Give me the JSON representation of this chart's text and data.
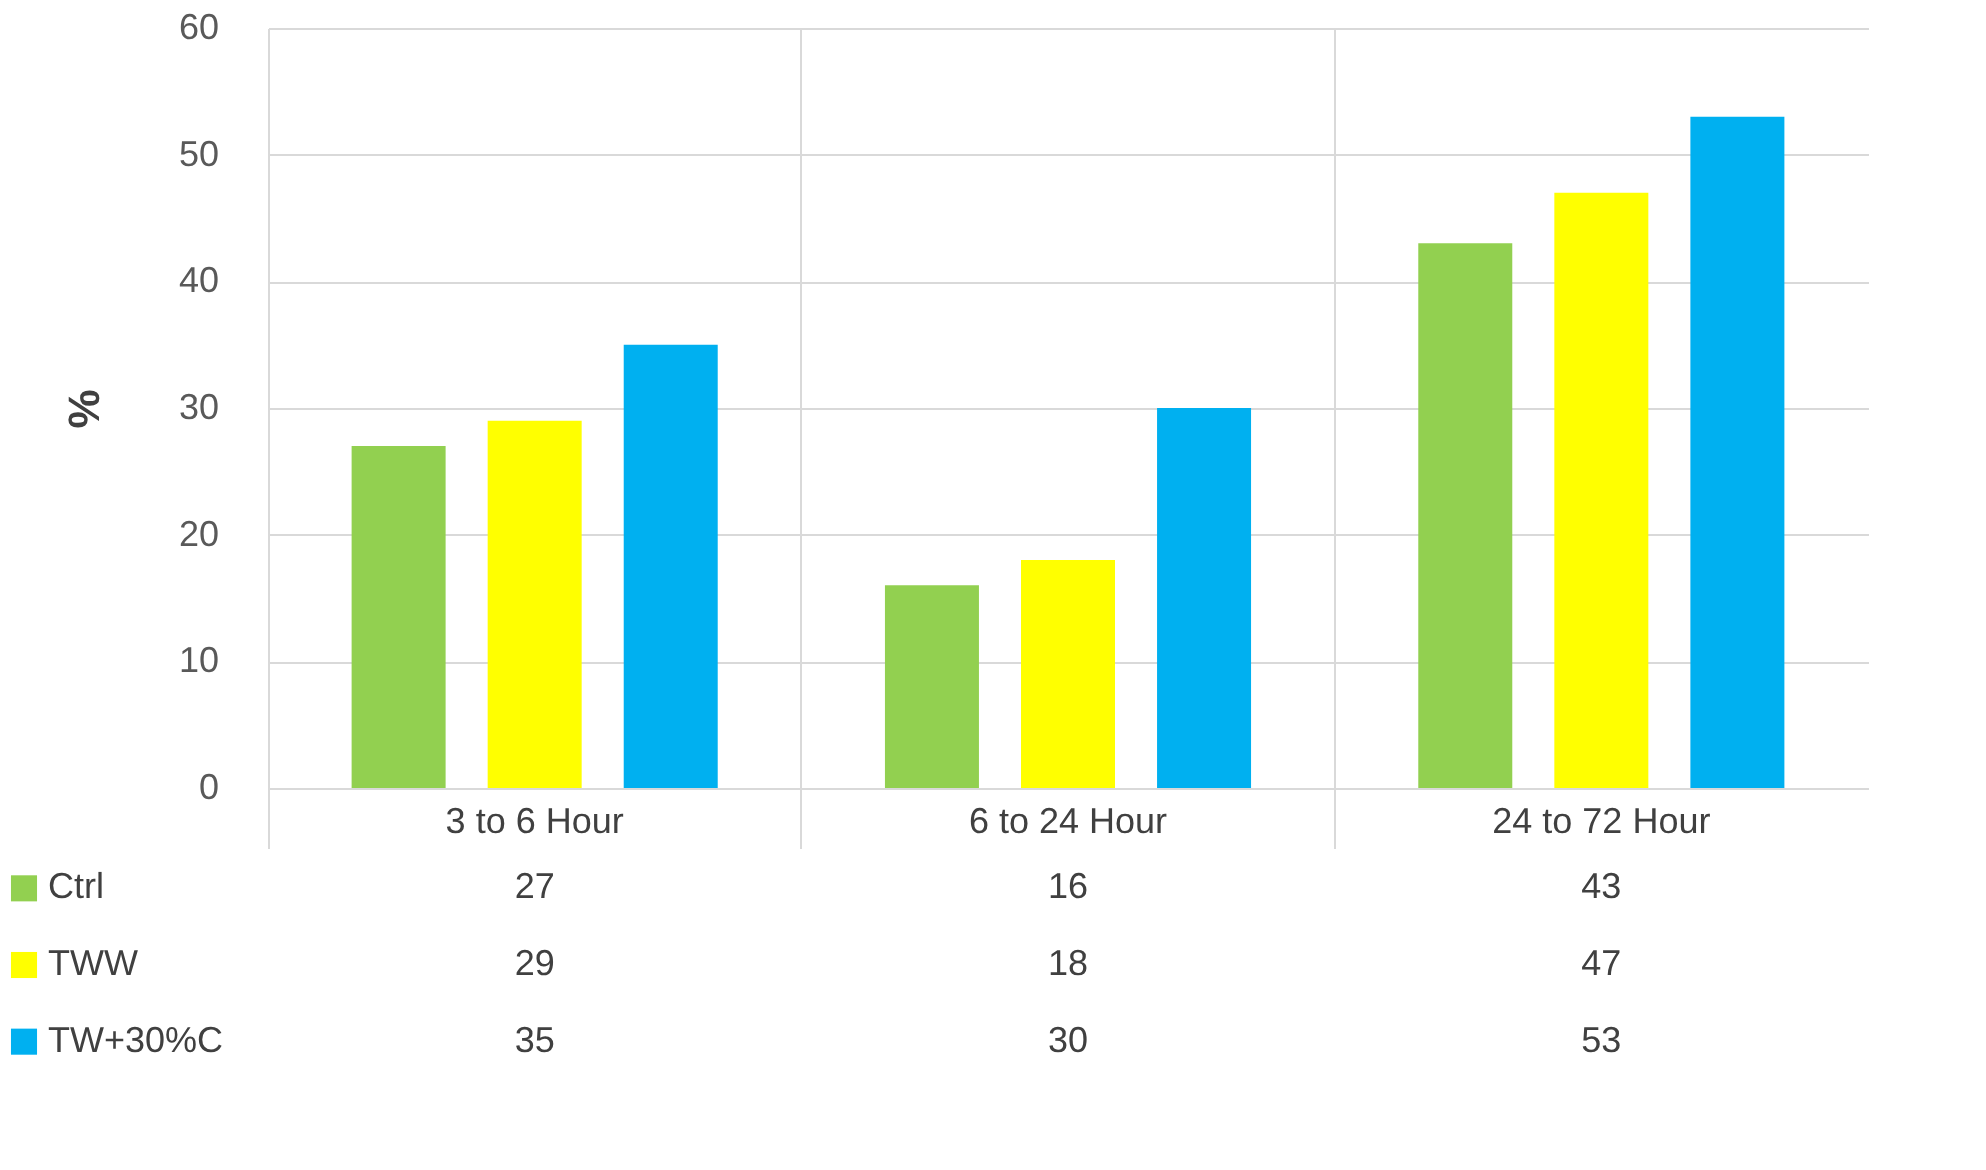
{
  "chart_data": {
    "type": "bar",
    "ylabel": "%",
    "categories": [
      "3 to 6 Hour",
      "6 to 24 Hour",
      "24 to 72 Hour"
    ],
    "series": [
      {
        "name": "Ctrl",
        "color": "#92d050",
        "values": [
          27,
          16,
          43
        ]
      },
      {
        "name": "TWW",
        "color": "#ffff00",
        "values": [
          29,
          18,
          47
        ]
      },
      {
        "name": "TW+30%C",
        "color": "#00b0f0",
        "values": [
          35,
          30,
          53
        ]
      }
    ],
    "ylim": [
      0,
      60
    ],
    "yticks": [
      0,
      10,
      20,
      30,
      40,
      50,
      60
    ],
    "grid": "y",
    "legend": "bottom",
    "data_labels": true
  }
}
